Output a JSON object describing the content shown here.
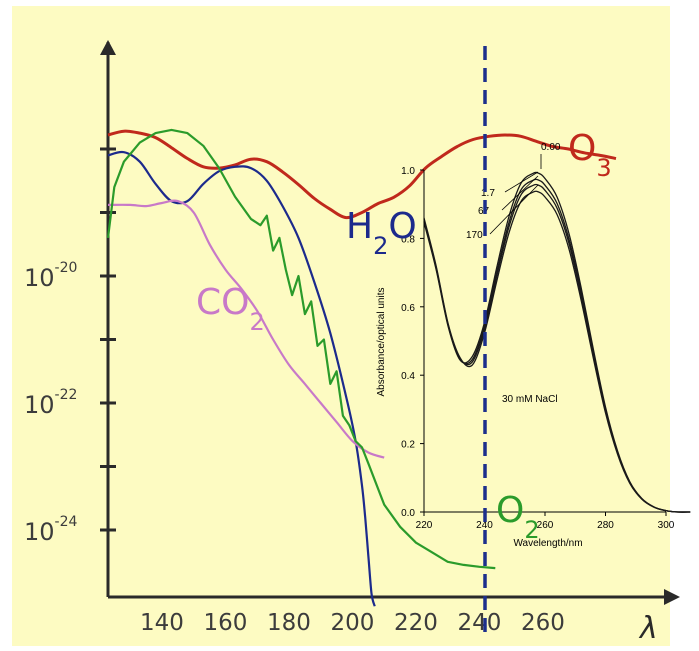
{
  "chart_data": [
    {
      "type": "line",
      "x_tick_labels": [
        "140",
        "160",
        "180",
        "200",
        "220",
        "240",
        "260"
      ],
      "x_axis_symbol": "λ",
      "y_tick_labels": [
        {
          "base": "10",
          "exp": "-20"
        },
        {
          "base": "10",
          "exp": "-22"
        },
        {
          "base": "10",
          "exp": "-24"
        }
      ],
      "xlim": [
        123,
        284
      ],
      "ylim_log10": [
        -25.4,
        -17.5
      ],
      "scale": "log",
      "grid": false,
      "vertical_marker": {
        "x": 240,
        "style": "dashed",
        "color": "#1c2f8c"
      },
      "series": [
        {
          "name": "O3",
          "label_base": "O",
          "label_sub": "3",
          "color": "#c0291c",
          "x": [
            123,
            128,
            133,
            138,
            143,
            148,
            153,
            158,
            163,
            168,
            173,
            178,
            183,
            188,
            193,
            198,
            203,
            208,
            213,
            218,
            223,
            228,
            233,
            238,
            243,
            248,
            253,
            258,
            263,
            268,
            273,
            278,
            283
          ],
          "y": [
            -17.78,
            -17.72,
            -17.75,
            -17.82,
            -17.98,
            -18.15,
            -18.28,
            -18.3,
            -18.25,
            -18.16,
            -18.2,
            -18.36,
            -18.56,
            -18.78,
            -18.95,
            -19.08,
            -19.0,
            -18.86,
            -18.76,
            -18.58,
            -18.3,
            -18.12,
            -17.96,
            -17.85,
            -17.8,
            -17.78,
            -17.8,
            -17.88,
            -17.96,
            -18.0,
            -18.06,
            -18.1,
            -18.15
          ]
        },
        {
          "name": "H2O",
          "label_base": "H",
          "label_sub": "2",
          "label_end": "O",
          "color": "#1c2a8c",
          "x": [
            123,
            128,
            133,
            138,
            143,
            148,
            153,
            158,
            163,
            168,
            173,
            178,
            183,
            188,
            193,
            198,
            201,
            203,
            204,
            205,
            206,
            207
          ],
          "y": [
            -18.1,
            -18.05,
            -18.2,
            -18.55,
            -18.82,
            -18.82,
            -18.55,
            -18.35,
            -18.28,
            -18.3,
            -18.5,
            -18.9,
            -19.4,
            -20.1,
            -20.9,
            -21.9,
            -22.6,
            -23.3,
            -23.8,
            -24.4,
            -25.0,
            -25.2
          ]
        },
        {
          "name": "CO2",
          "label_base": "CO",
          "label_sub": "2",
          "color": "#c879c8",
          "x": [
            123,
            130,
            135,
            140,
            145,
            150,
            155,
            160,
            165,
            170,
            175,
            180,
            185,
            190,
            195,
            200,
            205,
            210
          ],
          "y": [
            -18.88,
            -18.88,
            -18.9,
            -18.85,
            -18.82,
            -19.0,
            -19.5,
            -19.9,
            -20.2,
            -20.55,
            -21.0,
            -21.4,
            -21.7,
            -22.0,
            -22.3,
            -22.6,
            -22.78,
            -22.86
          ]
        },
        {
          "name": "O2",
          "label_base": "O",
          "label_sub": "2",
          "color": "#2b9b2b",
          "x": [
            123,
            125,
            128,
            133,
            138,
            143,
            148,
            153,
            158,
            163,
            168,
            171,
            173,
            175,
            177,
            179,
            181,
            183,
            185,
            187,
            189,
            191,
            193,
            195,
            197,
            199,
            201,
            203,
            205,
            210,
            215,
            220,
            225,
            230,
            235,
            240,
            245
          ],
          "y": [
            -19.4,
            -18.6,
            -18.2,
            -17.9,
            -17.75,
            -17.7,
            -17.75,
            -17.95,
            -18.3,
            -18.75,
            -19.1,
            -19.2,
            -19.05,
            -19.6,
            -19.4,
            -19.9,
            -20.3,
            -20.0,
            -20.6,
            -20.4,
            -21.1,
            -21.0,
            -21.7,
            -21.5,
            -22.2,
            -22.35,
            -22.6,
            -22.7,
            -22.95,
            -23.6,
            -23.95,
            -24.2,
            -24.35,
            -24.5,
            -24.55,
            -24.58,
            -24.6
          ]
        }
      ]
    },
    {
      "type": "line",
      "xlabel": "Wavelength/nm",
      "ylabel": "Absorbance/optical units",
      "xlim": [
        220,
        300
      ],
      "ylim": [
        0.0,
        1.0
      ],
      "x_ticks": [
        "220",
        "240",
        "260",
        "280",
        "300"
      ],
      "y_ticks": [
        "0.0",
        "0.2",
        "0.4",
        "0.6",
        "0.8",
        "1.0"
      ],
      "annotation": "30 mM NaCl",
      "grid": false,
      "series": [
        {
          "name": "0.00",
          "peak": 0.99
        },
        {
          "name": "1.7",
          "peak": 0.97
        },
        {
          "name": "67",
          "peak": 0.955
        },
        {
          "name": "170",
          "peak": 0.935
        }
      ]
    }
  ]
}
